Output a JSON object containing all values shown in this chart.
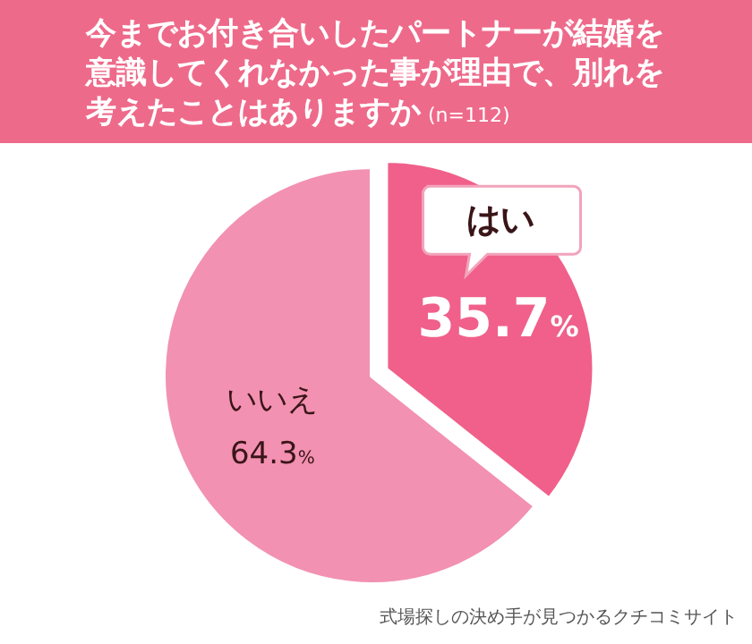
{
  "chart_data": {
    "type": "pie",
    "title": "今までお付き合いしたパートナーが結婚を意識してくれなかった事が理由で、別れを考えたことはありますか",
    "subtitle": "(n=112)",
    "categories": [
      "はい",
      "いいえ"
    ],
    "values": [
      35.7,
      64.3
    ],
    "value_labels": [
      "35.7%",
      "64.3%"
    ],
    "colors": [
      "#f0608a",
      "#f291b2"
    ],
    "annotations": [
      "式場探しの決め手が見つかるクチコミサイト"
    ]
  }
}
